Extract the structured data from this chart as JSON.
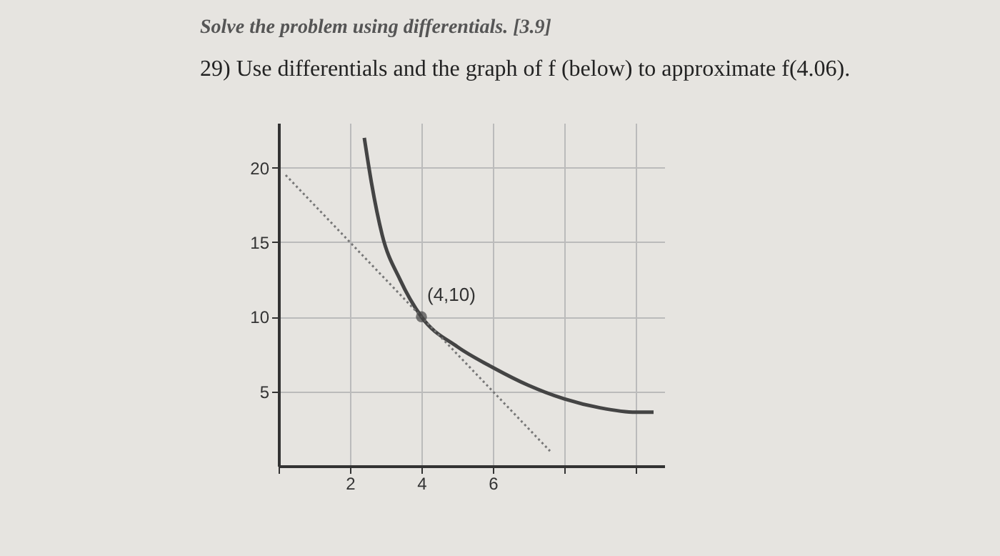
{
  "chart_data": {
    "type": "line",
    "title": "Solve the problem using differentials. [3.9]",
    "subtitle": "29)    Use differentials and the graph of f (below) to approximate f(4.06).",
    "xlim": [
      0,
      10.8
    ],
    "ylim": [
      0,
      23
    ],
    "xticks": [
      {
        "value": 0,
        "label": null
      },
      2,
      4,
      6,
      {
        "value": 8,
        "label": null
      },
      {
        "value": 10,
        "label": null
      }
    ],
    "yticks": [
      5,
      10,
      15,
      20
    ],
    "grid": true,
    "series": [
      {
        "type": "line",
        "color": "#444444",
        "line_style": "solid",
        "x": [
          2.4,
          2.6,
          2.9,
          3.4,
          4,
          5,
          6,
          7,
          8,
          9,
          10,
          10.5
        ],
        "values": [
          22,
          19,
          15.5,
          12.5,
          10,
          8,
          6.6,
          5.4,
          4.5,
          3.9,
          3.6,
          3.6
        ]
      },
      {
        "type": "line",
        "color": "#777777",
        "line_style": "dotted",
        "x": [
          0.2,
          4,
          7.6
        ],
        "values": [
          19.5,
          10,
          1
        ]
      },
      {
        "type": "scatter",
        "color": "#444444",
        "marker": "circle",
        "x": [
          4
        ],
        "values": [
          10
        ]
      }
    ],
    "annotations": [
      {
        "text": "(4,10)",
        "x": 4,
        "y": 10
      }
    ]
  }
}
